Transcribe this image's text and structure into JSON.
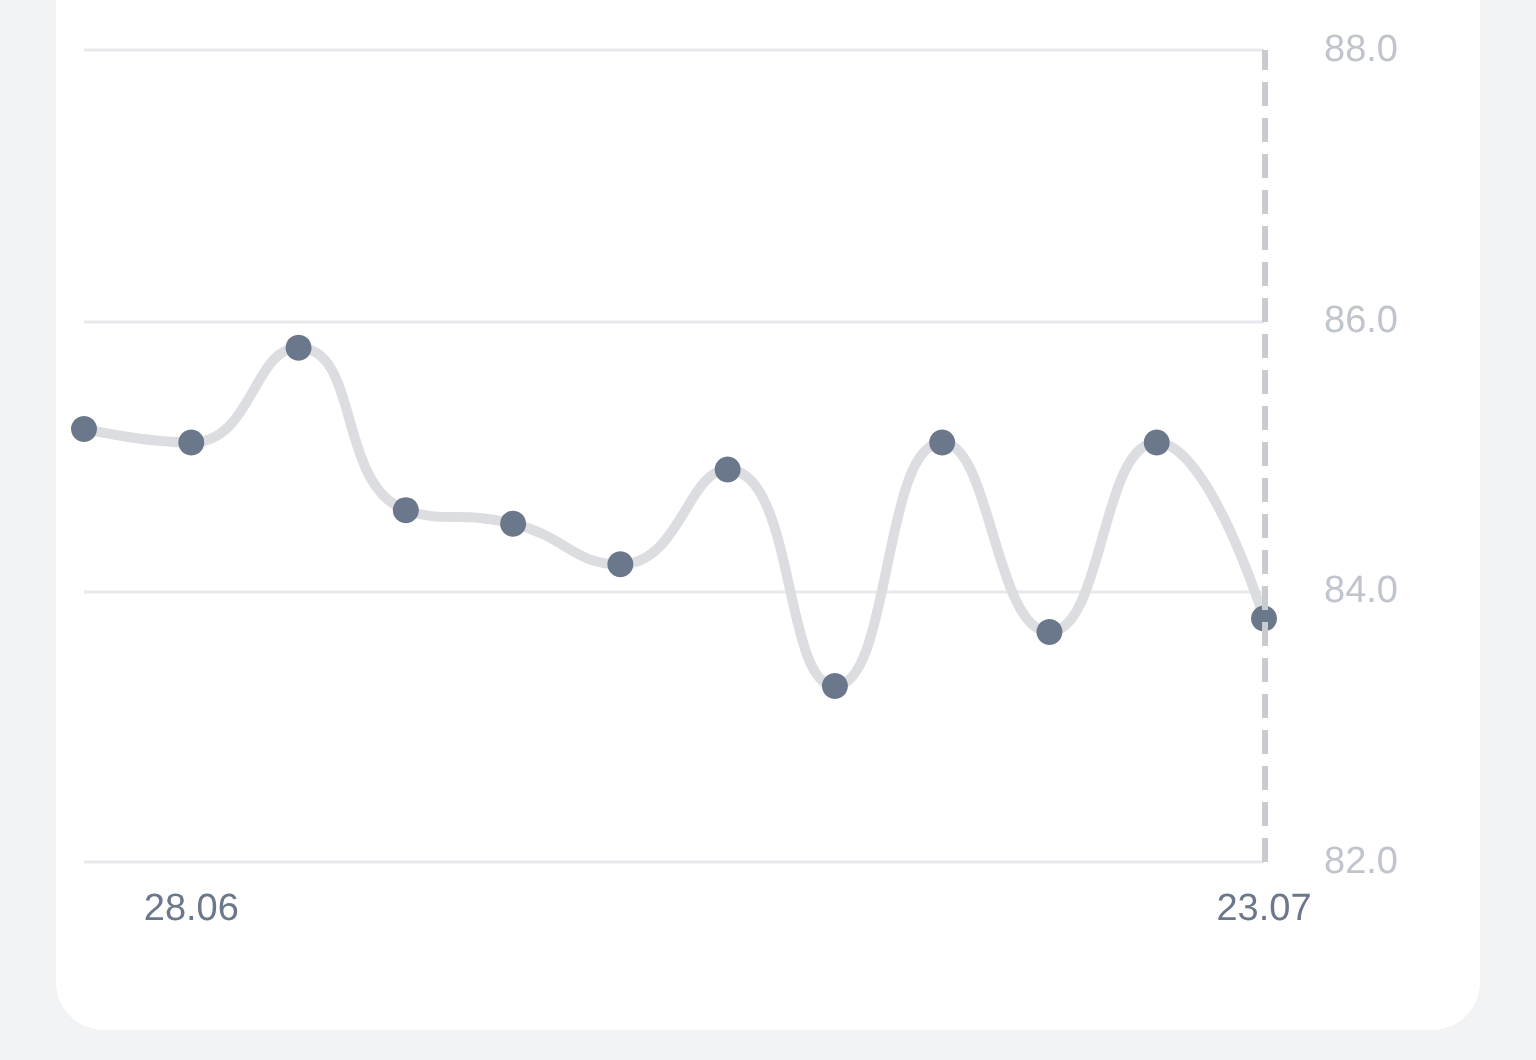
{
  "chart_data": {
    "type": "line",
    "categories": [
      null,
      "28.06",
      null,
      null,
      null,
      null,
      null,
      null,
      null,
      null,
      null,
      "23.07"
    ],
    "series": [
      {
        "color": "#6b778a",
        "values": [
          85.2,
          85.1,
          85.8,
          84.6,
          84.5,
          84.2,
          84.9,
          83.3,
          85.1,
          83.7,
          85.1,
          83.8
        ]
      }
    ],
    "ylim": [
      82,
      88
    ],
    "yticks": [
      {
        "value": 82,
        "label": "82.0"
      },
      {
        "value": 84,
        "label": "84.0"
      },
      {
        "value": 86,
        "label": "86.0"
      },
      {
        "value": 88,
        "label": "88.0"
      }
    ],
    "grid": "y",
    "marker": "circle",
    "line_style": "solid",
    "ref_lines": [
      {
        "axis": "x",
        "value": "23.07",
        "color": "#c8cbd0",
        "line_style": "dashed"
      }
    ]
  }
}
